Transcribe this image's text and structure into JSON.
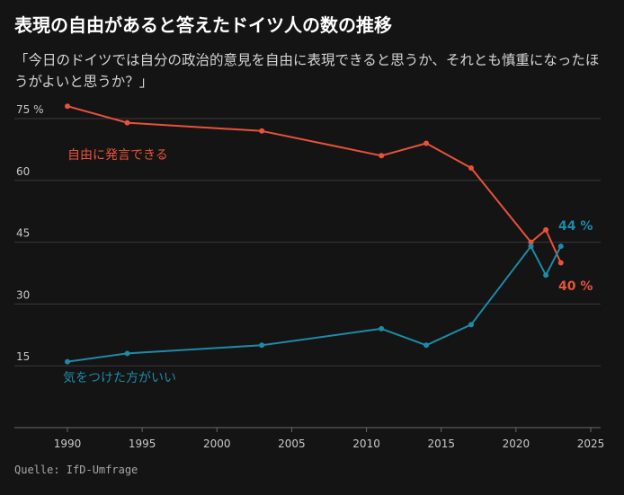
{
  "title": "表現の自由があると答えたドイツ人の数の推移",
  "subtitle": "「今日のドイツでは自分の政治的意見を自由に表現できると思うか、それとも慎重になったほうがよいと思うか？」",
  "source": "Quelle: IfD-Umfrage",
  "colors": {
    "background": "#141414",
    "grid": "#3a3a3a",
    "axis": "#6a6a6a",
    "free_series": "#e8523a",
    "careful_series": "#1f8aa8"
  },
  "chart_data": {
    "type": "line",
    "title": "表現の自由があると答えたドイツ人の数の推移",
    "xlabel": "",
    "ylabel": "",
    "xlim": [
      1987,
      2025
    ],
    "ylim": [
      0,
      80
    ],
    "x_ticks": [
      {
        "value": 1990,
        "label": "1990"
      },
      {
        "value": 1995,
        "label": "1995"
      },
      {
        "value": 2000,
        "label": "2000"
      },
      {
        "value": 2005,
        "label": "2005"
      },
      {
        "value": 2010,
        "label": "2010"
      },
      {
        "value": 2015,
        "label": "2015"
      },
      {
        "value": 2020,
        "label": "2020"
      },
      {
        "value": 2025,
        "label": "2025"
      }
    ],
    "y_ticks": [
      {
        "value": 15,
        "label": "15"
      },
      {
        "value": 30,
        "label": "30"
      },
      {
        "value": 45,
        "label": "45"
      },
      {
        "value": 60,
        "label": "60"
      },
      {
        "value": 75,
        "label": "75 %"
      }
    ],
    "series": [
      {
        "name": "自由に発言できる",
        "color": "#e8523a",
        "x": [
          1990,
          1994,
          2003,
          2011,
          2014,
          2017,
          2021,
          2022,
          2023
        ],
        "values": [
          78,
          74,
          72,
          66,
          69,
          63,
          45,
          48,
          40
        ],
        "end_label": "40 %"
      },
      {
        "name": "気をつけた方がいい",
        "color": "#1f8aa8",
        "x": [
          1990,
          1994,
          2003,
          2011,
          2014,
          2017,
          2021,
          2022,
          2023
        ],
        "values": [
          16,
          18,
          20,
          24,
          20,
          25,
          44,
          37,
          44
        ],
        "end_label": "44 %"
      }
    ]
  }
}
